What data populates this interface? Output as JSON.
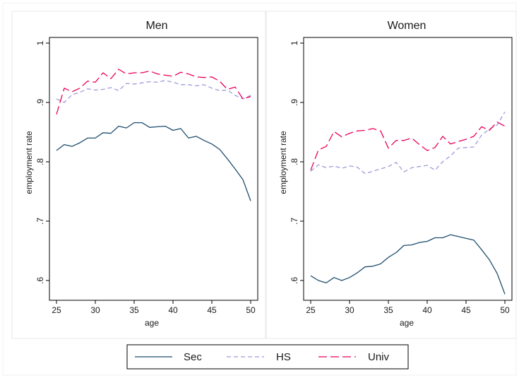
{
  "chart_data": {
    "type": "line",
    "xlabel": "age",
    "ylabel": "employment rate",
    "xlim": [
      25,
      50
    ],
    "ylim": [
      0.575,
      1.0
    ],
    "xticks": [
      25,
      30,
      35,
      40,
      45,
      50
    ],
    "yticks": [
      0.6,
      0.7,
      0.8,
      0.9,
      1.0
    ],
    "ytick_labels": [
      ".6",
      ".7",
      ".8",
      ".9",
      "1"
    ],
    "grid": false,
    "legend": {
      "position": "bottom-center"
    },
    "colors": {
      "Sec": "#1f4e6e",
      "HS": "#9b9bdc",
      "Univ": "#e8005a"
    },
    "panels": [
      {
        "title": "Men",
        "x": [
          25,
          26,
          27,
          28,
          29,
          30,
          31,
          32,
          33,
          34,
          35,
          36,
          37,
          38,
          39,
          40,
          41,
          42,
          43,
          44,
          45,
          46,
          47,
          48,
          49,
          50
        ],
        "series": [
          {
            "name": "Sec",
            "values": [
              0.819,
              0.829,
              0.826,
              0.832,
              0.84,
              0.84,
              0.849,
              0.848,
              0.86,
              0.857,
              0.866,
              0.866,
              0.858,
              0.859,
              0.86,
              0.853,
              0.856,
              0.84,
              0.843,
              0.836,
              0.83,
              0.821,
              0.805,
              0.788,
              0.77,
              0.734
            ]
          },
          {
            "name": "HS",
            "values": [
              0.906,
              0.9,
              0.913,
              0.917,
              0.923,
              0.921,
              0.922,
              0.925,
              0.92,
              0.932,
              0.931,
              0.933,
              0.935,
              0.934,
              0.937,
              0.934,
              0.93,
              0.93,
              0.928,
              0.93,
              0.924,
              0.92,
              0.921,
              0.912,
              0.906,
              0.912
            ]
          },
          {
            "name": "Univ",
            "values": [
              0.88,
              0.924,
              0.918,
              0.924,
              0.936,
              0.934,
              0.95,
              0.94,
              0.956,
              0.948,
              0.95,
              0.95,
              0.953,
              0.948,
              0.946,
              0.944,
              0.951,
              0.948,
              0.943,
              0.942,
              0.943,
              0.936,
              0.922,
              0.926,
              0.906,
              0.91
            ]
          }
        ]
      },
      {
        "title": "Women",
        "x": [
          25,
          26,
          27,
          28,
          29,
          30,
          31,
          32,
          33,
          34,
          35,
          36,
          37,
          38,
          39,
          40,
          41,
          42,
          43,
          44,
          45,
          46,
          47,
          48,
          49,
          50
        ],
        "series": [
          {
            "name": "Sec",
            "values": [
              0.608,
              0.6,
              0.596,
              0.605,
              0.6,
              0.605,
              0.613,
              0.623,
              0.624,
              0.628,
              0.639,
              0.647,
              0.659,
              0.66,
              0.664,
              0.666,
              0.672,
              0.672,
              0.677,
              0.674,
              0.671,
              0.668,
              0.652,
              0.635,
              0.612,
              0.577
            ]
          },
          {
            "name": "HS",
            "values": [
              0.784,
              0.795,
              0.79,
              0.793,
              0.789,
              0.793,
              0.791,
              0.78,
              0.784,
              0.788,
              0.792,
              0.799,
              0.783,
              0.79,
              0.792,
              0.794,
              0.786,
              0.8,
              0.81,
              0.823,
              0.824,
              0.825,
              0.845,
              0.855,
              0.862,
              0.884
            ]
          },
          {
            "name": "Univ",
            "values": [
              0.786,
              0.82,
              0.826,
              0.851,
              0.842,
              0.848,
              0.852,
              0.853,
              0.856,
              0.852,
              0.823,
              0.836,
              0.836,
              0.84,
              0.829,
              0.819,
              0.824,
              0.843,
              0.83,
              0.834,
              0.838,
              0.843,
              0.859,
              0.853,
              0.867,
              0.86
            ]
          }
        ]
      }
    ]
  }
}
